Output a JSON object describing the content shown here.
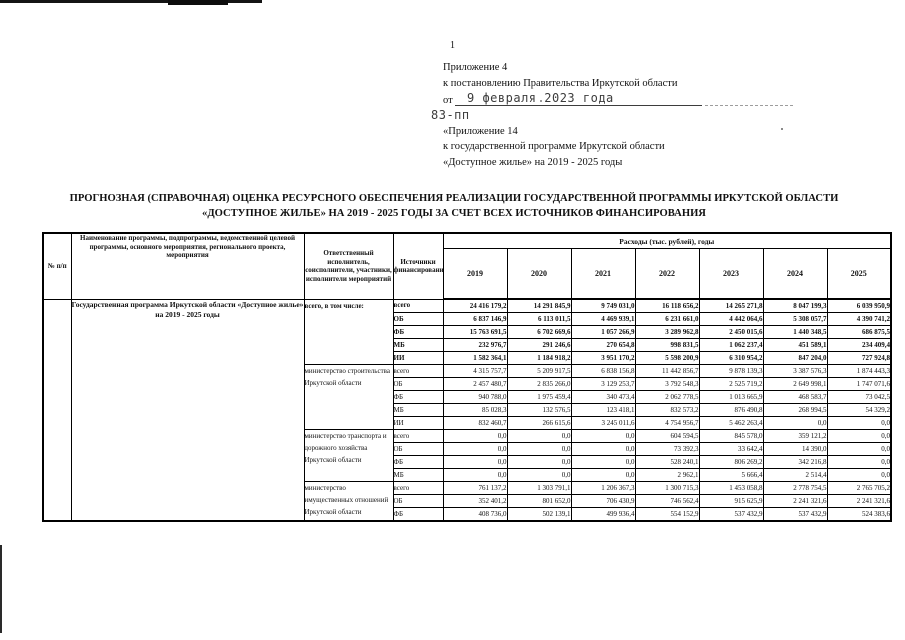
{
  "page": {
    "number": "1"
  },
  "header": {
    "line1": "Приложение 4",
    "line2": "к постановлению Правительства Иркутской области",
    "date_prefix": "от",
    "date_typed": "9 февраля 2023 года",
    "doc_number": "83-пп",
    "line3": "«Приложение 14",
    "line4": "к государственной программе Иркутской области",
    "line5": "«Доступное жилье» на 2019 - 2025 годы"
  },
  "title": "ПРОГНОЗНАЯ (СПРАВОЧНАЯ) ОЦЕНКА РЕСУРСНОГО ОБЕСПЕЧЕНИЯ РЕАЛИЗАЦИИ ГОСУДАРСТВЕННОЙ ПРОГРАММЫ ИРКУТСКОЙ ОБЛАСТИ «ДОСТУПНОЕ ЖИЛЬЕ» НА 2019 - 2025 ГОДЫ ЗА СЧЕТ ВСЕХ ИСТОЧНИКОВ ФИНАНСИРОВАНИЯ",
  "table": {
    "headers": {
      "num": "№ п/п",
      "name": "Наименование программы, подпрограммы, ведомственной целевой программы, основного мероприятия, регионального проекта, мероприятия",
      "executor": "Ответственный исполнитель, соисполнители, участники, исполнители мероприятий",
      "sources": "Источники финансирования",
      "expenses": "Расходы (тыс. рублей), годы"
    },
    "years": [
      "2019",
      "2020",
      "2021",
      "2022",
      "2023",
      "2024",
      "2025"
    ],
    "program_name": "Государственная программа Иркутской области «Доступное жилье» на 2019 - 2025 годы",
    "groups": [
      {
        "executor": "всего, в том числе:",
        "bold": true,
        "rows": [
          {
            "source": "всего",
            "values": [
              "24 416 179,2",
              "14 291 845,9",
              "9 749 031,0",
              "16 118 656,2",
              "14 265 271,8",
              "8 047 199,3",
              "6 039 950,9"
            ]
          },
          {
            "source": "ОБ",
            "values": [
              "6 837 146,9",
              "6 113 011,5",
              "4 469 939,1",
              "6 231 661,0",
              "4 442 064,6",
              "5 308 057,7",
              "4 390 741,2"
            ]
          },
          {
            "source": "ФБ",
            "values": [
              "15 763 691,5",
              "6 702 669,6",
              "1 057 266,9",
              "3 289 962,8",
              "2 450 015,6",
              "1 440 348,5",
              "686 875,5"
            ]
          },
          {
            "source": "МБ",
            "values": [
              "232 976,7",
              "291 246,6",
              "270 654,8",
              "998 831,5",
              "1 062 237,4",
              "451 589,1",
              "234 409,4"
            ]
          },
          {
            "source": "ИИ",
            "values": [
              "1 582 364,1",
              "1 184 918,2",
              "3 951 170,2",
              "5 598 200,9",
              "6 310 954,2",
              "847 204,0",
              "727 924,8"
            ]
          }
        ]
      },
      {
        "executor": "министерство строительства Иркутской области",
        "bold": false,
        "rows": [
          {
            "source": "всего",
            "values": [
              "4 315 757,7",
              "5 209 917,5",
              "6 838 156,8",
              "11 442 856,7",
              "9 878 139,3",
              "3 387 576,3",
              "1 874 443,3"
            ]
          },
          {
            "source": "ОБ",
            "values": [
              "2 457 480,7",
              "2 835 266,0",
              "3 129 253,7",
              "3 792 548,3",
              "2 525 719,2",
              "2 649 998,1",
              "1 747 071,6"
            ]
          },
          {
            "source": "ФБ",
            "values": [
              "940 788,0",
              "1 975 459,4",
              "340 473,4",
              "2 062 778,5",
              "1 013 665,9",
              "468 583,7",
              "73 042,5"
            ]
          },
          {
            "source": "МБ",
            "values": [
              "85 028,3",
              "132 576,5",
              "123 418,1",
              "832 573,2",
              "876 490,8",
              "268 994,5",
              "54 329,2"
            ]
          },
          {
            "source": "ИИ",
            "values": [
              "832 460,7",
              "266 615,6",
              "3 245 011,6",
              "4 754 956,7",
              "5 462 263,4",
              "0,0",
              "0,0"
            ]
          }
        ]
      },
      {
        "executor": "министерство транспорта и дорожного хозяйства Иркутской области",
        "bold": false,
        "rows": [
          {
            "source": "всего",
            "values": [
              "0,0",
              "0,0",
              "0,0",
              "604 594,5",
              "845 578,0",
              "359 121,2",
              "0,0"
            ]
          },
          {
            "source": "ОБ",
            "values": [
              "0,0",
              "0,0",
              "0,0",
              "73 392,3",
              "33 642,4",
              "14 390,0",
              "0,0"
            ]
          },
          {
            "source": "ФБ",
            "values": [
              "0,0",
              "0,0",
              "0,0",
              "528 240,1",
              "806 269,2",
              "342 216,8",
              "0,0"
            ]
          },
          {
            "source": "МБ",
            "values": [
              "0,0",
              "0,0",
              "0,0",
              "2 962,1",
              "5 666,4",
              "2 514,4",
              "0,0"
            ]
          }
        ]
      },
      {
        "executor": "министерство имущественных отношений Иркутской области",
        "bold": false,
        "rows": [
          {
            "source": "всего",
            "values": [
              "761 137,2",
              "1 303 791,1",
              "1 206 367,3",
              "1 300 715,3",
              "1 453 058,8",
              "2 778 754,5",
              "2 765 705,2"
            ]
          },
          {
            "source": "ОБ",
            "values": [
              "352 401,2",
              "801 652,0",
              "706 430,9",
              "746 562,4",
              "915 625,9",
              "2 241 321,6",
              "2 241 321,6"
            ]
          },
          {
            "source": "ФБ",
            "values": [
              "408 736,0",
              "502 139,1",
              "499 936,4",
              "554 152,9",
              "537 432,9",
              "537 432,9",
              "524 383,6"
            ]
          }
        ]
      }
    ]
  }
}
